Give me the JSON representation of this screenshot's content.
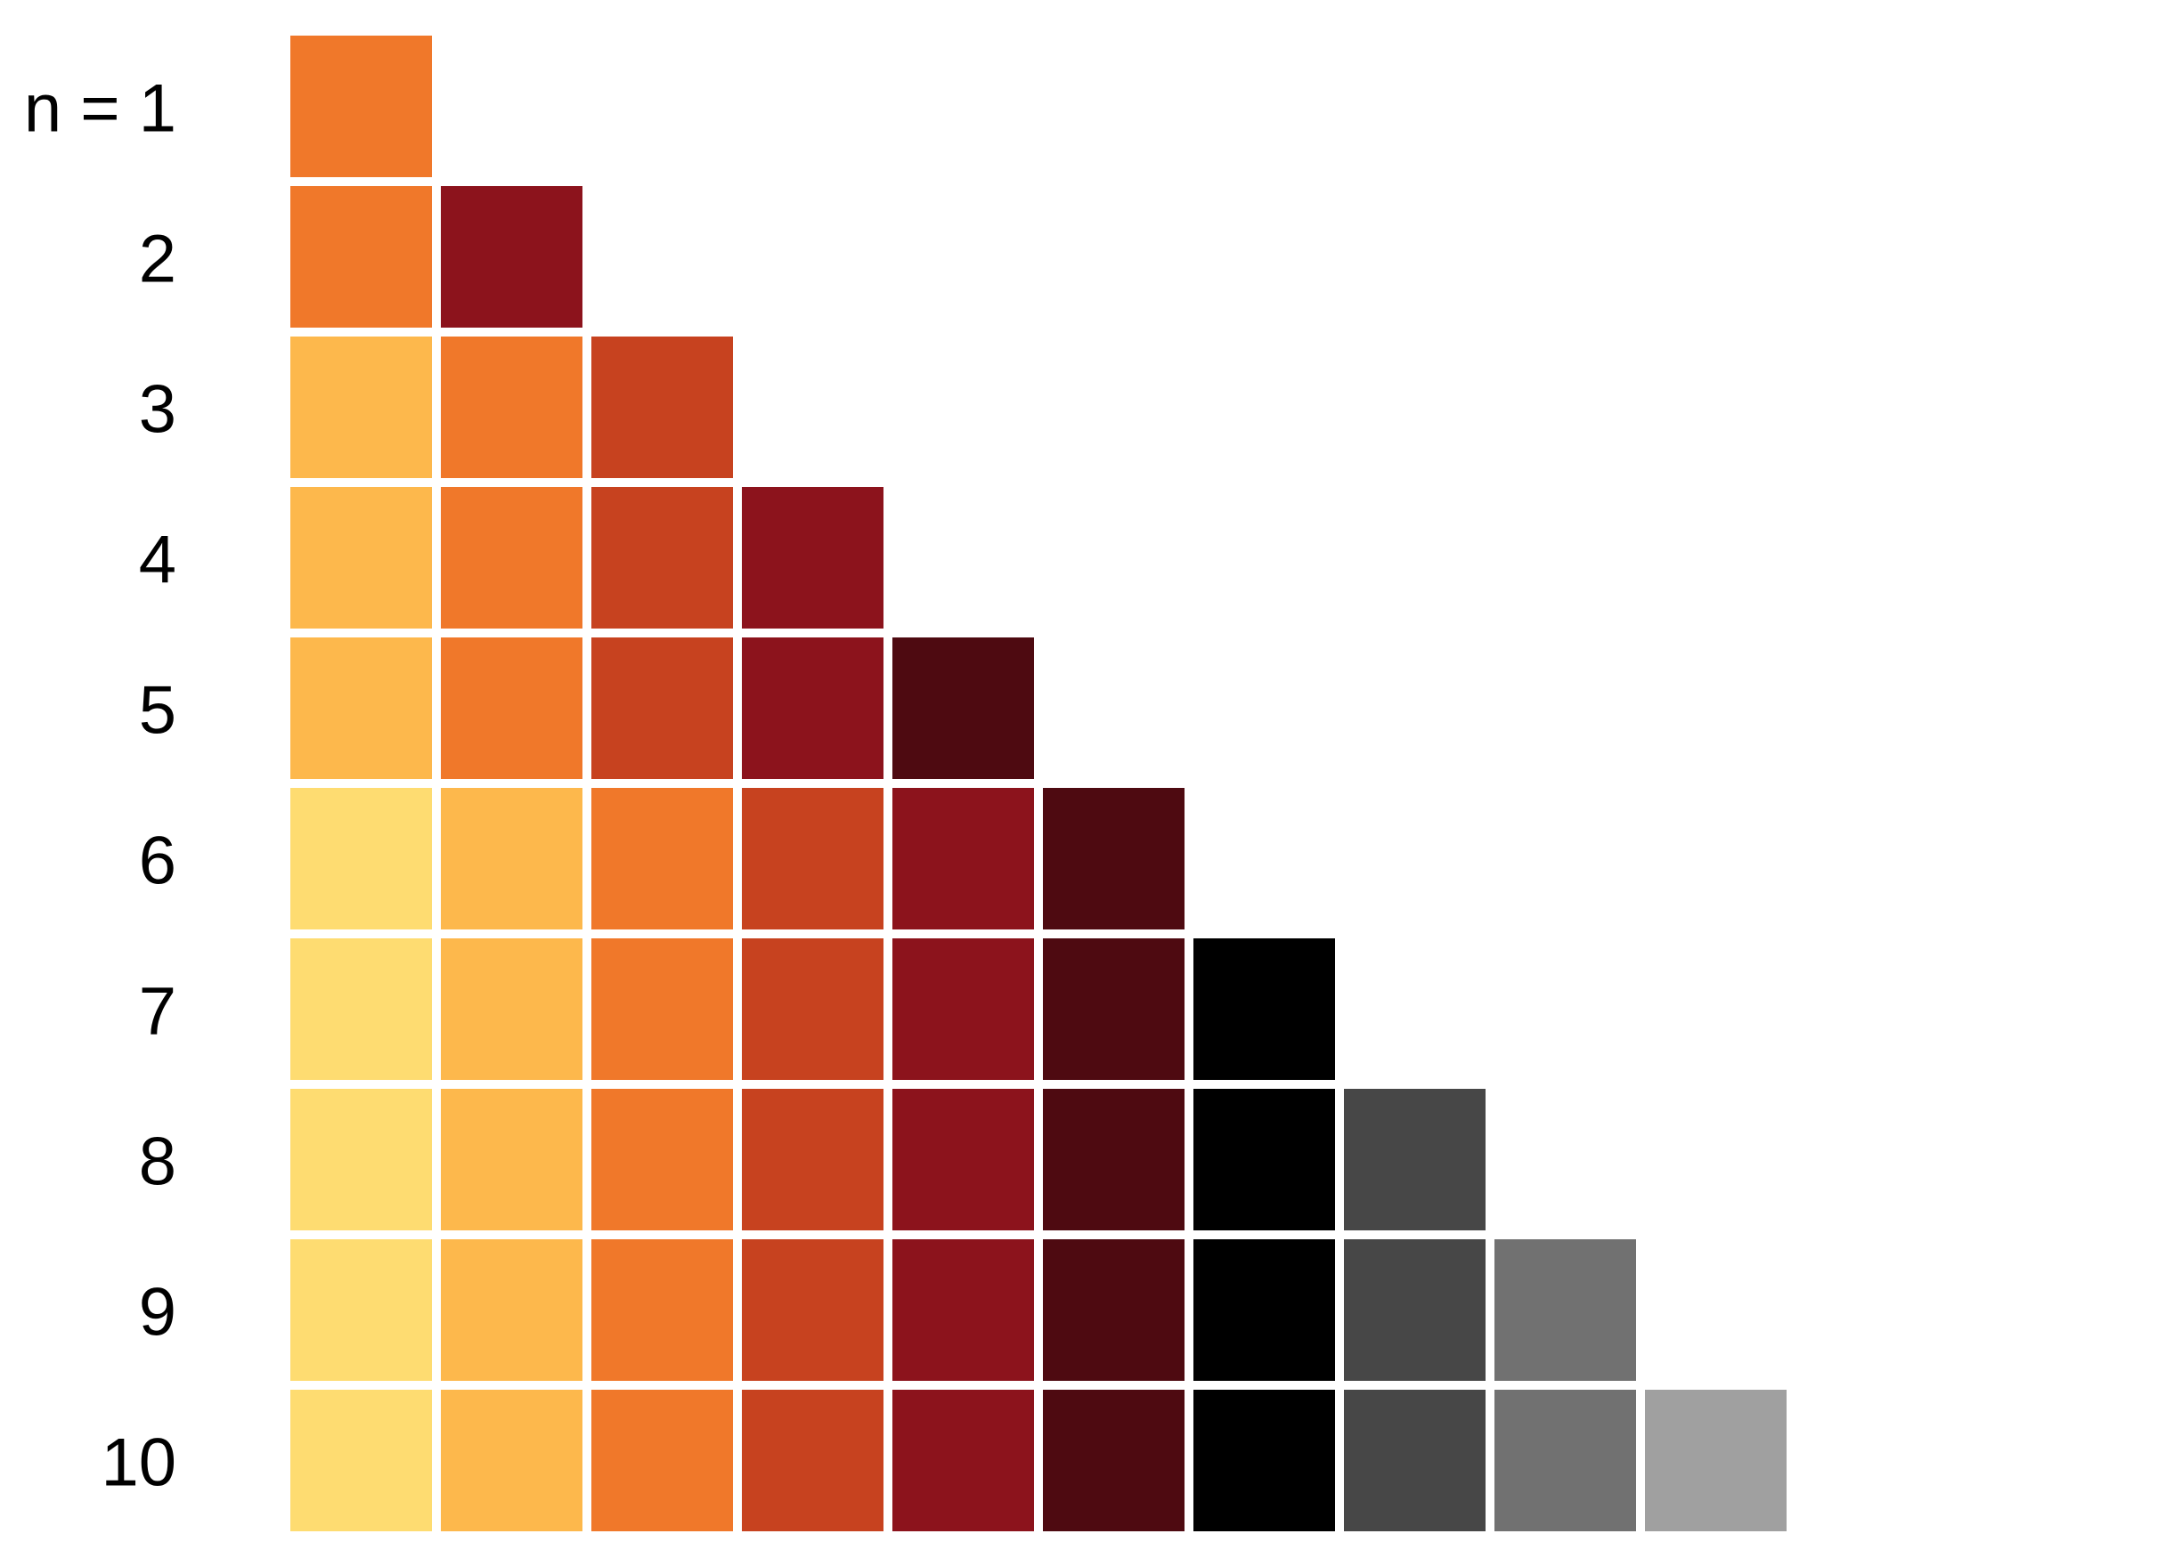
{
  "palette": {
    "colors": {
      "pale-yellow": "#FEDC71",
      "light-orange": "#FDB84C",
      "orange": "#F0782A",
      "red-orange": "#C7421F",
      "crimson": "#8C131C",
      "dark-maroon": "#4E0A11",
      "black": "#000000",
      "dark-gray": "#474747",
      "medium-gray": "#717171",
      "light-gray": "#A0A0A0"
    },
    "rows": [
      {
        "label": "n = 1",
        "swatches": [
          "orange"
        ]
      },
      {
        "label": "2",
        "swatches": [
          "orange",
          "crimson"
        ]
      },
      {
        "label": "3",
        "swatches": [
          "light-orange",
          "orange",
          "red-orange"
        ]
      },
      {
        "label": "4",
        "swatches": [
          "light-orange",
          "orange",
          "red-orange",
          "crimson"
        ]
      },
      {
        "label": "5",
        "swatches": [
          "light-orange",
          "orange",
          "red-orange",
          "crimson",
          "dark-maroon"
        ]
      },
      {
        "label": "6",
        "swatches": [
          "pale-yellow",
          "light-orange",
          "orange",
          "red-orange",
          "crimson",
          "dark-maroon"
        ]
      },
      {
        "label": "7",
        "swatches": [
          "pale-yellow",
          "light-orange",
          "orange",
          "red-orange",
          "crimson",
          "dark-maroon",
          "black"
        ]
      },
      {
        "label": "8",
        "swatches": [
          "pale-yellow",
          "light-orange",
          "orange",
          "red-orange",
          "crimson",
          "dark-maroon",
          "black",
          "dark-gray"
        ]
      },
      {
        "label": "9",
        "swatches": [
          "pale-yellow",
          "light-orange",
          "orange",
          "red-orange",
          "crimson",
          "dark-maroon",
          "black",
          "dark-gray",
          "medium-gray"
        ]
      },
      {
        "label": "10",
        "swatches": [
          "pale-yellow",
          "light-orange",
          "orange",
          "red-orange",
          "crimson",
          "dark-maroon",
          "black",
          "dark-gray",
          "medium-gray",
          "light-gray"
        ]
      }
    ]
  }
}
